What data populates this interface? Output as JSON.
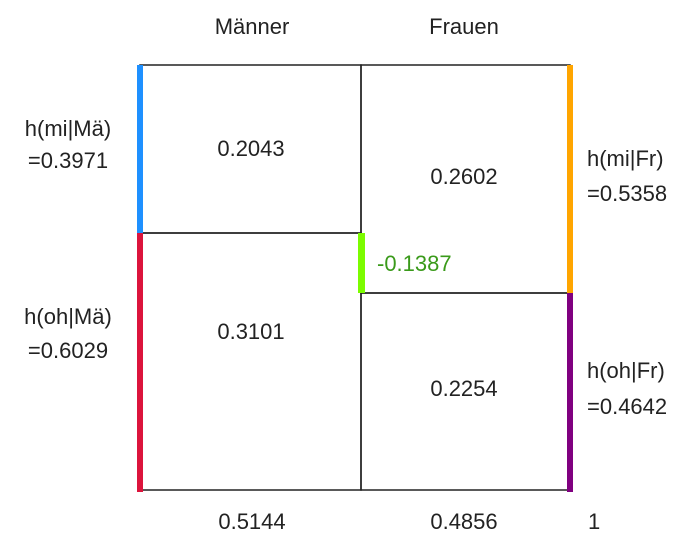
{
  "columns": [
    {
      "header": "Männer",
      "total": "0.5144"
    },
    {
      "header": "Frauen",
      "total": "0.4856"
    }
  ],
  "grand_total": "1",
  "cells": {
    "maenner_mi": "0.2043",
    "maenner_oh": "0.3101",
    "frauen_mi": "0.2602",
    "frauen_oh": "0.2254"
  },
  "difference": "-0.1387",
  "left_labels": [
    {
      "name": "h(mi|Mä)",
      "value": "=0.3971"
    },
    {
      "name": "h(oh|Mä)",
      "value": "=0.6029"
    }
  ],
  "right_labels": [
    {
      "name": "h(mi|Fr)",
      "value": "=0.5358"
    },
    {
      "name": "h(oh|Fr)",
      "value": "=0.4642"
    }
  ]
}
